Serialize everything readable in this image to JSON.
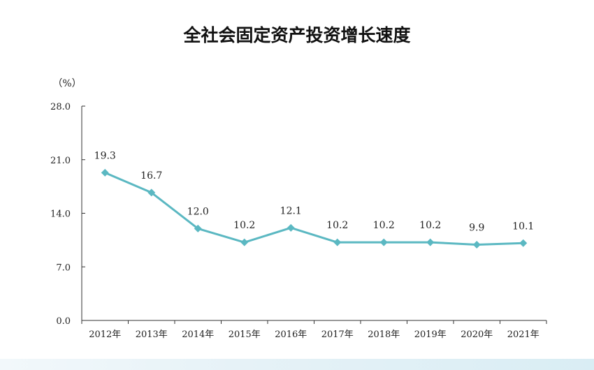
{
  "chart_data": {
    "type": "line",
    "title": "全社会固定资产投资增长速度",
    "ylabel": "（%）",
    "ylim": [
      0,
      28
    ],
    "yticks": [
      "0.0",
      "7.0",
      "14.0",
      "21.0",
      "28.0"
    ],
    "categories": [
      "2012年",
      "2013年",
      "2014年",
      "2015年",
      "2016年",
      "2017年",
      "2018年",
      "2019年",
      "2020年",
      "2021年"
    ],
    "series": [
      {
        "values": [
          19.3,
          16.7,
          12.0,
          10.2,
          12.1,
          10.2,
          10.2,
          10.2,
          9.9,
          10.1
        ],
        "labels": [
          "19.3",
          "16.7",
          "12.0",
          "10.2",
          "12.1",
          "10.2",
          "10.2",
          "10.2",
          "9.9",
          "10.1"
        ]
      }
    ],
    "line_color": "#5bb8c2",
    "marker": "diamond",
    "grid": false,
    "legend": "none"
  }
}
